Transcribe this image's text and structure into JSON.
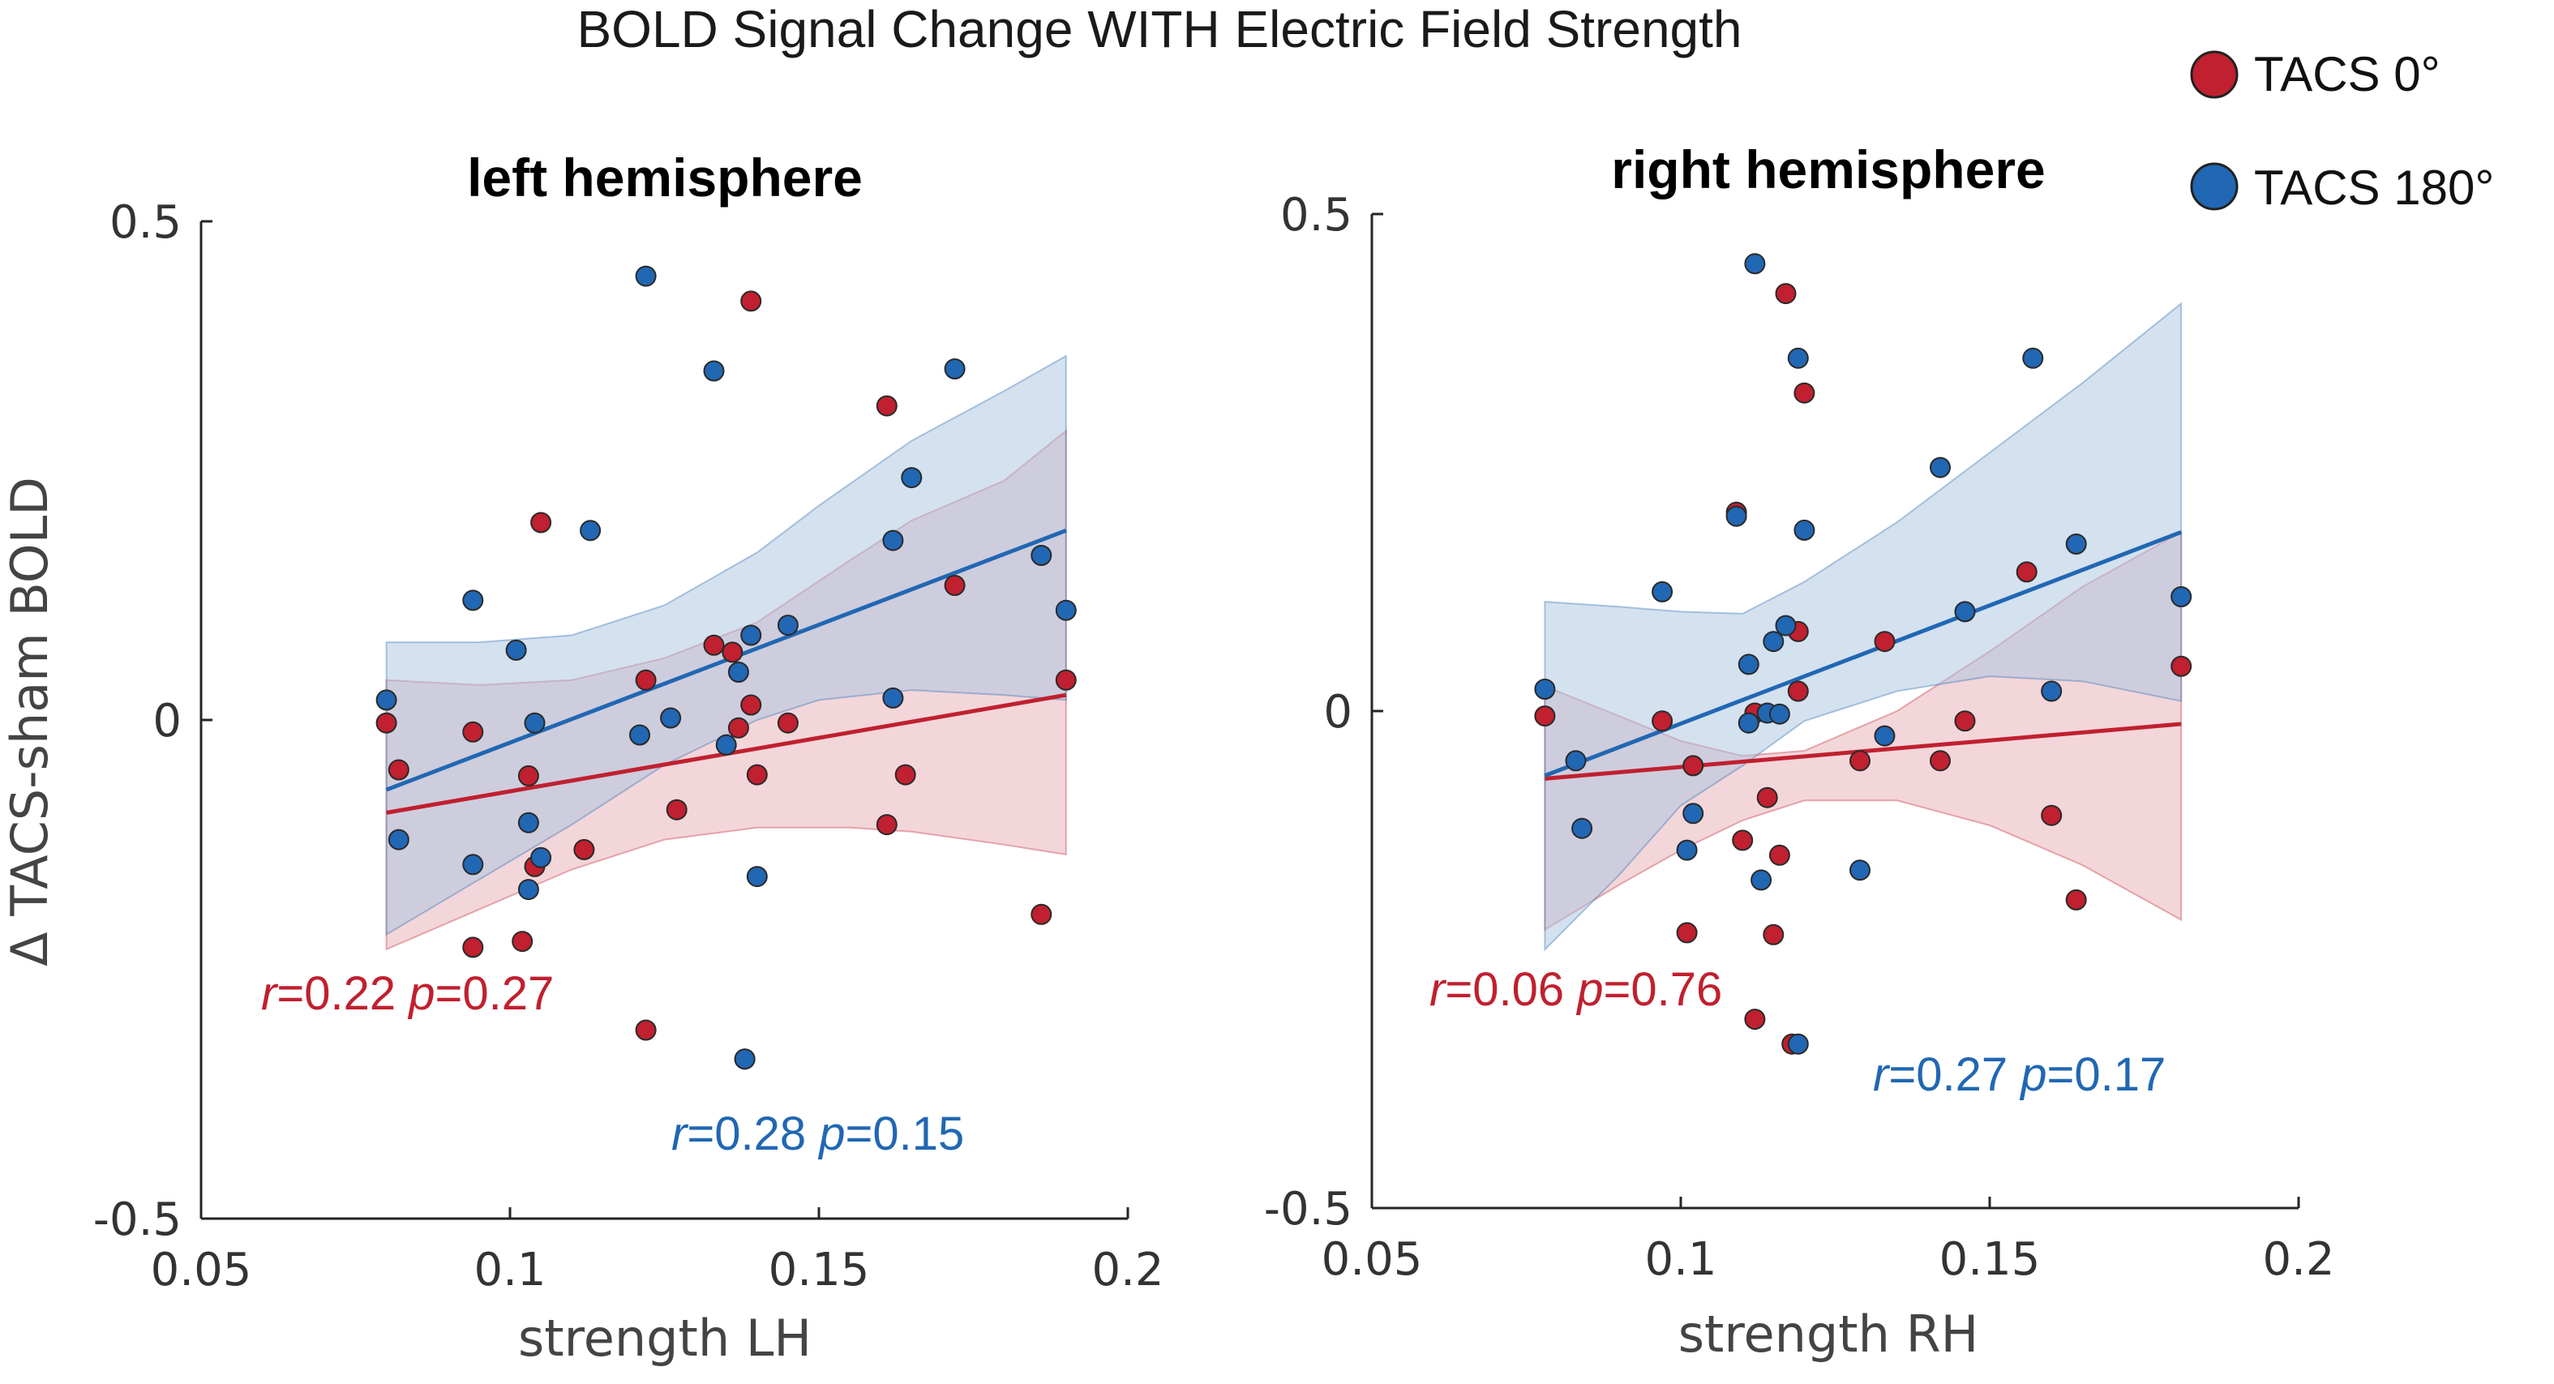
{
  "title": "BOLD Signal Change WITH Electric Field Strength",
  "legend": [
    {
      "label": "TACS 0°",
      "color": "#c0202f"
    },
    {
      "label": "TACS 180°",
      "color": "#2167b3"
    }
  ],
  "ylabel": "Δ TACS-sham BOLD",
  "colors": {
    "red": "#c0202f",
    "red_fill": "#e7aeb6",
    "blue": "#2167b3",
    "blue_fill": "#a9c3e0",
    "axis": "#262626"
  },
  "chart_data": [
    {
      "type": "scatter",
      "title": "left hemisphere",
      "xlabel": "strength LH",
      "xlim": [
        0.05,
        0.2
      ],
      "ylim": [
        -0.5,
        0.5
      ],
      "xticks": [
        0.05,
        0.1,
        0.15,
        0.2
      ],
      "xtick_labels": [
        "0.05",
        "0.1",
        "0.15",
        "0.2"
      ],
      "yticks": [
        -0.5,
        0,
        0.5
      ],
      "ytick_labels": [
        "-0.5",
        "0",
        "0.5"
      ],
      "series": [
        {
          "name": "TACS 0°",
          "color_key": "red",
          "points": [
            [
              0.08,
              -0.003
            ],
            [
              0.082,
              -0.05
            ],
            [
              0.094,
              -0.012
            ],
            [
              0.094,
              -0.228
            ],
            [
              0.102,
              -0.222
            ],
            [
              0.103,
              -0.056
            ],
            [
              0.104,
              -0.147
            ],
            [
              0.105,
              0.198
            ],
            [
              0.112,
              -0.13
            ],
            [
              0.122,
              0.04
            ],
            [
              0.122,
              -0.311
            ],
            [
              0.127,
              -0.09
            ],
            [
              0.133,
              0.075
            ],
            [
              0.136,
              0.068
            ],
            [
              0.137,
              -0.008
            ],
            [
              0.138,
              -0.34
            ],
            [
              0.139,
              0.42
            ],
            [
              0.139,
              0.015
            ],
            [
              0.14,
              -0.055
            ],
            [
              0.145,
              -0.003
            ],
            [
              0.161,
              0.315
            ],
            [
              0.161,
              -0.105
            ],
            [
              0.164,
              -0.055
            ],
            [
              0.172,
              0.135
            ],
            [
              0.186,
              -0.195
            ],
            [
              0.19,
              0.04
            ]
          ],
          "fit": {
            "x": [
              0.08,
              0.19
            ],
            "y": [
              -0.093,
              0.025
            ]
          },
          "band_upper": [
            [
              0.08,
              0.04
            ],
            [
              0.095,
              0.035
            ],
            [
              0.11,
              0.04
            ],
            [
              0.125,
              0.062
            ],
            [
              0.14,
              0.098
            ],
            [
              0.155,
              0.16
            ],
            [
              0.165,
              0.2
            ],
            [
              0.18,
              0.24
            ],
            [
              0.19,
              0.29
            ]
          ],
          "band_lower": [
            [
              0.08,
              -0.23
            ],
            [
              0.095,
              -0.19
            ],
            [
              0.11,
              -0.15
            ],
            [
              0.125,
              -0.12
            ],
            [
              0.14,
              -0.108
            ],
            [
              0.155,
              -0.108
            ],
            [
              0.165,
              -0.112
            ],
            [
              0.18,
              -0.125
            ],
            [
              0.19,
              -0.135
            ]
          ],
          "stats": {
            "r_symbol": "r",
            "r_value": "=0.22 ",
            "p_symbol": "p",
            "p_value": "=0.27"
          }
        },
        {
          "name": "TACS 180°",
          "color_key": "blue",
          "points": [
            [
              0.08,
              0.02
            ],
            [
              0.082,
              -0.12
            ],
            [
              0.094,
              0.12
            ],
            [
              0.094,
              -0.145
            ],
            [
              0.101,
              0.07
            ],
            [
              0.103,
              -0.17
            ],
            [
              0.103,
              -0.103
            ],
            [
              0.104,
              -0.003
            ],
            [
              0.105,
              -0.138
            ],
            [
              0.113,
              0.19
            ],
            [
              0.121,
              -0.015
            ],
            [
              0.122,
              0.445
            ],
            [
              0.126,
              0.002
            ],
            [
              0.133,
              0.35
            ],
            [
              0.135,
              -0.025
            ],
            [
              0.137,
              0.048
            ],
            [
              0.138,
              -0.34
            ],
            [
              0.139,
              0.085
            ],
            [
              0.14,
              -0.157
            ],
            [
              0.145,
              0.095
            ],
            [
              0.162,
              0.022
            ],
            [
              0.162,
              0.18
            ],
            [
              0.165,
              0.243
            ],
            [
              0.172,
              0.352
            ],
            [
              0.186,
              0.165
            ],
            [
              0.19,
              0.11
            ]
          ],
          "fit": {
            "x": [
              0.08,
              0.19
            ],
            "y": [
              -0.07,
              0.19
            ]
          },
          "band_upper": [
            [
              0.08,
              0.078
            ],
            [
              0.095,
              0.078
            ],
            [
              0.11,
              0.085
            ],
            [
              0.125,
              0.115
            ],
            [
              0.14,
              0.168
            ],
            [
              0.15,
              0.215
            ],
            [
              0.165,
              0.28
            ],
            [
              0.18,
              0.33
            ],
            [
              0.19,
              0.365
            ]
          ],
          "band_lower": [
            [
              0.08,
              -0.215
            ],
            [
              0.095,
              -0.16
            ],
            [
              0.11,
              -0.105
            ],
            [
              0.125,
              -0.045
            ],
            [
              0.14,
              0.0
            ],
            [
              0.15,
              0.02
            ],
            [
              0.165,
              0.03
            ],
            [
              0.18,
              0.025
            ],
            [
              0.19,
              0.02
            ]
          ],
          "stats": {
            "r_symbol": "r",
            "r_value": "=0.28 ",
            "p_symbol": "p",
            "p_value": "=0.15"
          }
        }
      ]
    },
    {
      "type": "scatter",
      "title": "right hemisphere",
      "xlabel": "strength RH",
      "xlim": [
        0.05,
        0.2
      ],
      "ylim": [
        -0.5,
        0.5
      ],
      "xticks": [
        0.05,
        0.1,
        0.15,
        0.2
      ],
      "xtick_labels": [
        "0.05",
        "0.1",
        "0.15",
        "0.2"
      ],
      "yticks": [
        -0.5,
        0,
        0.5
      ],
      "ytick_labels": [
        "-0.5",
        "0",
        "0.5"
      ],
      "series": [
        {
          "name": "TACS 0°",
          "color_key": "red",
          "points": [
            [
              0.078,
              -0.005
            ],
            [
              0.097,
              -0.01
            ],
            [
              0.101,
              -0.223
            ],
            [
              0.102,
              -0.055
            ],
            [
              0.109,
              0.2
            ],
            [
              0.11,
              -0.13
            ],
            [
              0.112,
              -0.002
            ],
            [
              0.112,
              -0.31
            ],
            [
              0.114,
              -0.087
            ],
            [
              0.115,
              -0.225
            ],
            [
              0.116,
              -0.145
            ],
            [
              0.117,
              0.42
            ],
            [
              0.118,
              -0.335
            ],
            [
              0.119,
              0.02
            ],
            [
              0.119,
              0.08
            ],
            [
              0.12,
              0.32
            ],
            [
              0.129,
              -0.05
            ],
            [
              0.133,
              0.07
            ],
            [
              0.142,
              -0.05
            ],
            [
              0.146,
              -0.01
            ],
            [
              0.156,
              0.14
            ],
            [
              0.16,
              -0.105
            ],
            [
              0.164,
              -0.19
            ],
            [
              0.181,
              0.045
            ]
          ],
          "fit": {
            "x": [
              0.078,
              0.181
            ],
            "y": [
              -0.068,
              -0.013
            ]
          },
          "band_upper": [
            [
              0.078,
              0.025
            ],
            [
              0.09,
              -0.005
            ],
            [
              0.1,
              -0.03
            ],
            [
              0.11,
              -0.045
            ],
            [
              0.12,
              -0.04
            ],
            [
              0.135,
              0.0
            ],
            [
              0.15,
              0.06
            ],
            [
              0.165,
              0.125
            ],
            [
              0.181,
              0.18
            ]
          ],
          "band_lower": [
            [
              0.078,
              -0.22
            ],
            [
              0.09,
              -0.175
            ],
            [
              0.1,
              -0.14
            ],
            [
              0.11,
              -0.11
            ],
            [
              0.12,
              -0.09
            ],
            [
              0.135,
              -0.09
            ],
            [
              0.15,
              -0.115
            ],
            [
              0.165,
              -0.155
            ],
            [
              0.181,
              -0.21
            ]
          ],
          "stats": {
            "r_symbol": "r",
            "r_value": "=0.06 ",
            "p_symbol": "p",
            "p_value": "=0.76"
          }
        },
        {
          "name": "TACS 180°",
          "color_key": "blue",
          "points": [
            [
              0.078,
              0.022
            ],
            [
              0.083,
              -0.05
            ],
            [
              0.084,
              -0.118
            ],
            [
              0.097,
              0.12
            ],
            [
              0.101,
              -0.14
            ],
            [
              0.102,
              -0.103
            ],
            [
              0.109,
              0.196
            ],
            [
              0.111,
              0.047
            ],
            [
              0.111,
              -0.012
            ],
            [
              0.112,
              0.45
            ],
            [
              0.113,
              -0.17
            ],
            [
              0.114,
              -0.002
            ],
            [
              0.115,
              0.07
            ],
            [
              0.116,
              -0.003
            ],
            [
              0.117,
              0.086
            ],
            [
              0.119,
              0.355
            ],
            [
              0.119,
              -0.335
            ],
            [
              0.12,
              0.182
            ],
            [
              0.129,
              -0.16
            ],
            [
              0.133,
              -0.025
            ],
            [
              0.142,
              0.245
            ],
            [
              0.146,
              0.1
            ],
            [
              0.157,
              0.355
            ],
            [
              0.16,
              0.02
            ],
            [
              0.164,
              0.168
            ],
            [
              0.181,
              0.115
            ]
          ],
          "fit": {
            "x": [
              0.078,
              0.181
            ],
            "y": [
              -0.065,
              0.18
            ]
          },
          "band_upper": [
            [
              0.078,
              0.11
            ],
            [
              0.09,
              0.105
            ],
            [
              0.1,
              0.1
            ],
            [
              0.11,
              0.098
            ],
            [
              0.12,
              0.13
            ],
            [
              0.135,
              0.19
            ],
            [
              0.15,
              0.26
            ],
            [
              0.165,
              0.33
            ],
            [
              0.181,
              0.41
            ]
          ],
          "band_lower": [
            [
              0.078,
              -0.24
            ],
            [
              0.09,
              -0.165
            ],
            [
              0.1,
              -0.095
            ],
            [
              0.11,
              -0.055
            ],
            [
              0.12,
              -0.01
            ],
            [
              0.135,
              0.02
            ],
            [
              0.15,
              0.035
            ],
            [
              0.165,
              0.03
            ],
            [
              0.181,
              0.01
            ]
          ],
          "stats": {
            "r_symbol": "r",
            "r_value": "=0.27 ",
            "p_symbol": "p",
            "p_value": "=0.17"
          }
        }
      ]
    }
  ]
}
